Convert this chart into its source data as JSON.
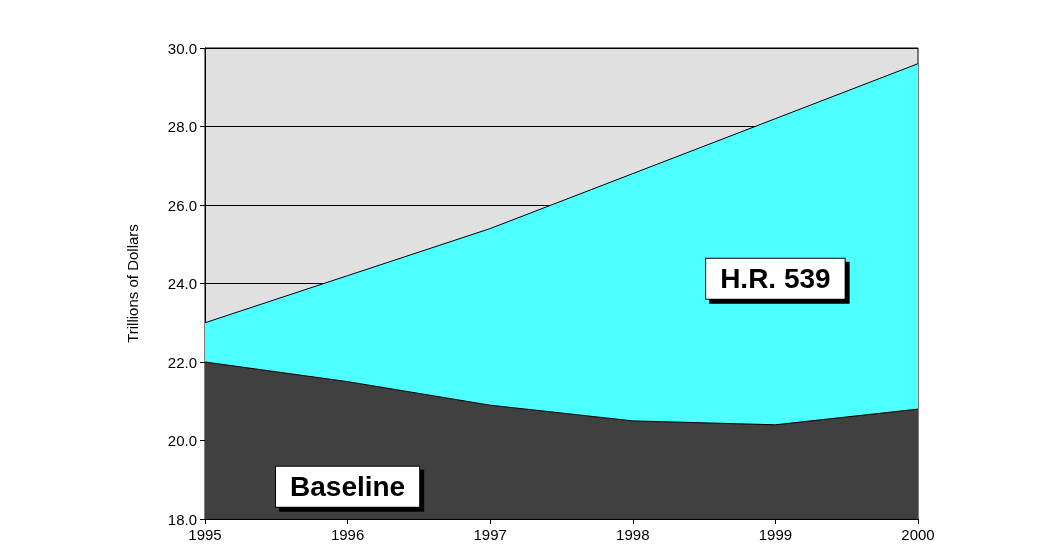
{
  "chart_data": {
    "type": "area",
    "ylabel": "Trillions of Dollars",
    "categories": [
      "1995",
      "1996",
      "1997",
      "1998",
      "1999",
      "2000"
    ],
    "series": [
      {
        "name": "H.R. 539",
        "color": "#4dffff",
        "values": [
          23.0,
          24.2,
          25.4,
          26.8,
          28.2,
          29.6
        ]
      },
      {
        "name": "Baseline",
        "color": "#404040",
        "values": [
          22.0,
          21.5,
          20.9,
          20.5,
          20.4,
          20.8
        ]
      }
    ],
    "ylim": [
      18,
      30
    ],
    "yticks": [
      {
        "value": 18,
        "label": "18.0"
      },
      {
        "value": 20,
        "label": "20.0"
      },
      {
        "value": 22,
        "label": "22.0"
      },
      {
        "value": 24,
        "label": "24.0"
      },
      {
        "value": 26,
        "label": "26.0"
      },
      {
        "value": 28,
        "label": "28.0"
      },
      {
        "value": 30,
        "label": "30.0"
      }
    ],
    "grid": "y",
    "legend": false
  }
}
